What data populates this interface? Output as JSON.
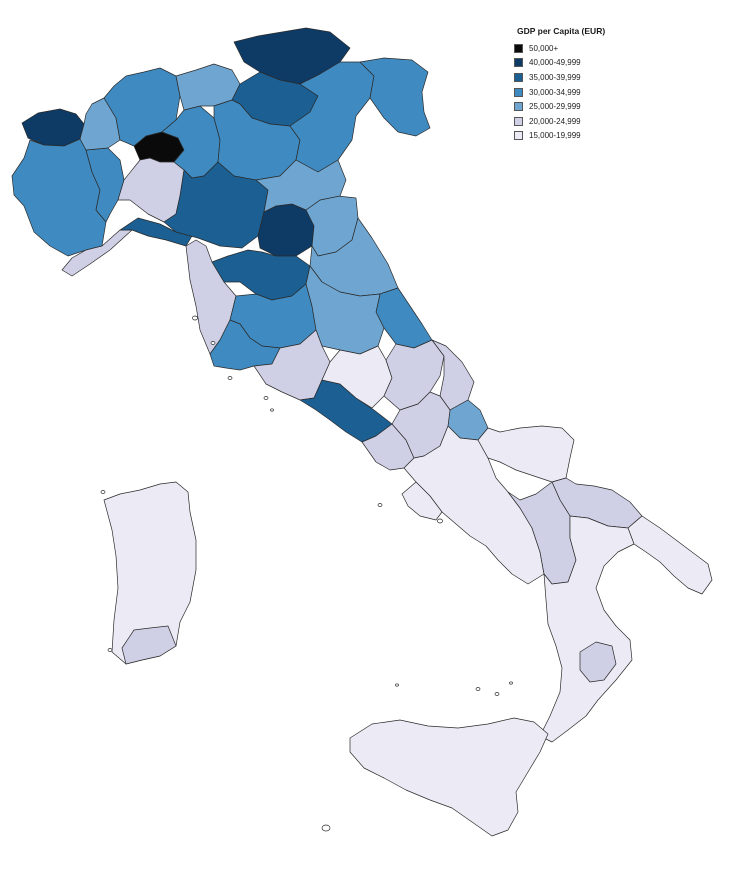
{
  "legend": {
    "title": "GDP per Capita (EUR)",
    "items": [
      {
        "label": "50,000+",
        "color": "#0a0a0a"
      },
      {
        "label": "40,000-49,999",
        "color": "#0d3b66"
      },
      {
        "label": "35,000-39,999",
        "color": "#1b5f93"
      },
      {
        "label": "30,000-34,999",
        "color": "#3f8bc1"
      },
      {
        "label": "25,000-29,999",
        "color": "#6fa6d1"
      },
      {
        "label": "20,000-24,999",
        "color": "#cfd0e6"
      },
      {
        "label": "15,000-19,999",
        "color": "#ecebf5"
      }
    ]
  },
  "map": {
    "country": "Italy",
    "unit": "province",
    "regions": [
      {
        "name": "aosta",
        "bin": 1
      },
      {
        "name": "piedmont-west",
        "bin": 3
      },
      {
        "name": "piedmont-south",
        "bin": 3
      },
      {
        "name": "piedmont-north",
        "bin": 4
      },
      {
        "name": "liguria-west",
        "bin": 5
      },
      {
        "name": "liguria-genoa",
        "bin": 2
      },
      {
        "name": "milan",
        "bin": 0
      },
      {
        "name": "pavia",
        "bin": 5
      },
      {
        "name": "lombardy-north",
        "bin": 3
      },
      {
        "name": "lombardy-east",
        "bin": 3
      },
      {
        "name": "sondrio",
        "bin": 4
      },
      {
        "name": "bolzano",
        "bin": 1
      },
      {
        "name": "trento",
        "bin": 2
      },
      {
        "name": "veneto-west",
        "bin": 3
      },
      {
        "name": "veneto-east",
        "bin": 3
      },
      {
        "name": "friuli",
        "bin": 3
      },
      {
        "name": "emilia-west",
        "bin": 2
      },
      {
        "name": "bologna",
        "bin": 1
      },
      {
        "name": "romagna",
        "bin": 4
      },
      {
        "name": "ferrara",
        "bin": 4
      },
      {
        "name": "tuscany-coast",
        "bin": 5
      },
      {
        "name": "florence",
        "bin": 2
      },
      {
        "name": "tuscany-central",
        "bin": 3
      },
      {
        "name": "tuscany-south",
        "bin": 3
      },
      {
        "name": "marche-north",
        "bin": 4
      },
      {
        "name": "marche-south",
        "bin": 3
      },
      {
        "name": "umbria",
        "bin": 4
      },
      {
        "name": "lazio-north",
        "bin": 5
      },
      {
        "name": "rome",
        "bin": 2
      },
      {
        "name": "lazio-south",
        "bin": 5
      },
      {
        "name": "rieti",
        "bin": 6
      },
      {
        "name": "abruzzo-west",
        "bin": 5
      },
      {
        "name": "abruzzo-east",
        "bin": 5
      },
      {
        "name": "chieti",
        "bin": 4
      },
      {
        "name": "molise",
        "bin": 5
      },
      {
        "name": "campania",
        "bin": 6
      },
      {
        "name": "naples",
        "bin": 6
      },
      {
        "name": "foggia",
        "bin": 6
      },
      {
        "name": "bari",
        "bin": 5
      },
      {
        "name": "salento",
        "bin": 6
      },
      {
        "name": "basilicata",
        "bin": 5
      },
      {
        "name": "calabria",
        "bin": 6
      },
      {
        "name": "catanzaro",
        "bin": 5
      },
      {
        "name": "sicily",
        "bin": 6
      },
      {
        "name": "sardinia",
        "bin": 6
      },
      {
        "name": "cagliari",
        "bin": 5
      }
    ]
  }
}
